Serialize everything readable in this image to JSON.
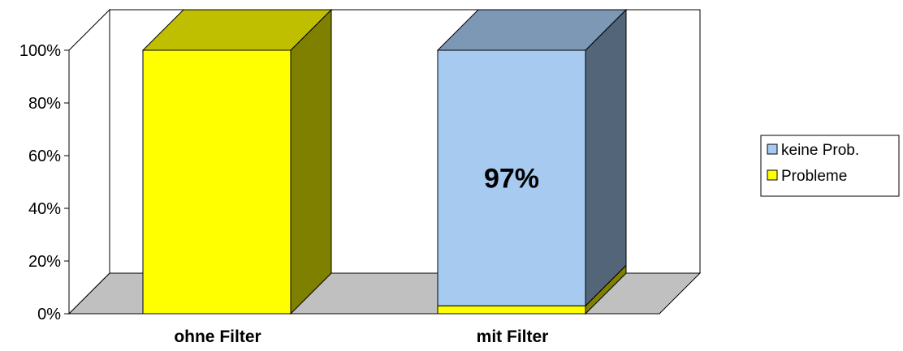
{
  "chart_data": {
    "type": "bar",
    "stacked": true,
    "percent": true,
    "three_d": true,
    "categories": [
      "ohne Filter",
      "mit Filter"
    ],
    "series": [
      {
        "name": "Probleme",
        "values": [
          100,
          3
        ],
        "color": "#ffff00"
      },
      {
        "name": "keine Prob.",
        "values": [
          0,
          97
        ],
        "color": "#a6caf0"
      }
    ],
    "ylim": [
      0,
      100
    ],
    "yticks": [
      "0%",
      "20%",
      "40%",
      "60%",
      "80%",
      "100%"
    ],
    "data_labels": [
      {
        "category": "mit Filter",
        "series": "keine Prob.",
        "text": "97%"
      }
    ],
    "legend": {
      "position": "right",
      "entries": [
        "keine Prob.",
        "Probleme"
      ]
    },
    "grid": false,
    "title": "",
    "xlabel": "",
    "ylabel": ""
  },
  "colors": {
    "floor": "#c0c0c0",
    "wall": "#ffffff",
    "Probleme": "#ffff00",
    "keine Prob.": "#a6caf0"
  }
}
